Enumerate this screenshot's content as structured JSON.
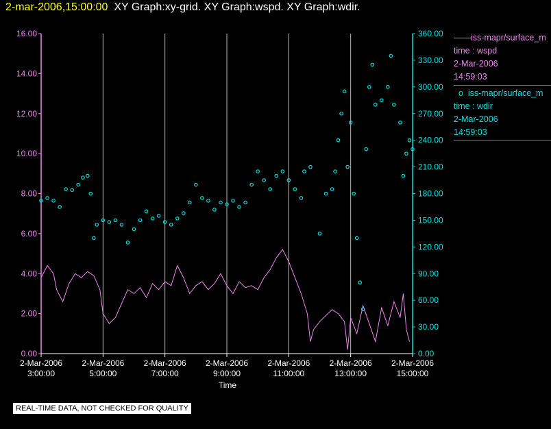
{
  "header": {
    "timestamp": "2-mar-2006,15:00:00",
    "titles": "XY Graph:xy-grid.  XY Graph:wspd.  XY Graph:wdir."
  },
  "legend": {
    "series1": {
      "name": "iss-mapr/surface_m",
      "time_label": "time : wspd",
      "date": "2-Mar-2006",
      "time": "14:59:03"
    },
    "series2": {
      "name": "iss-mapr/surface_m",
      "time_label": "time : wdir",
      "date": "2-Mar-2006",
      "time": "14:59:03"
    }
  },
  "notice": "REAL-TIME DATA, NOT CHECKED FOR QUALITY",
  "colors": {
    "wspd": "#ee88ee",
    "wdir": "#00e0e0",
    "grid": "#bbbbbb",
    "axis_text": "#ffffff"
  },
  "chart_data": {
    "type": "scatter",
    "xlabel": "Time",
    "x_ticks": [
      {
        "date": "2-Mar-2006",
        "time": "3:00:00"
      },
      {
        "date": "2-Mar-2006",
        "time": "5:00:00"
      },
      {
        "date": "2-Mar-2006",
        "time": "7:00:00"
      },
      {
        "date": "2-Mar-2006",
        "time": "9:00:00"
      },
      {
        "date": "2-Mar-2006",
        "time": "11:00:00"
      },
      {
        "date": "2-Mar-2006",
        "time": "13:00:00"
      },
      {
        "date": "2-Mar-2006",
        "time": "15:00:00"
      }
    ],
    "xlim_hours": [
      3,
      15
    ],
    "y_left": {
      "ticks": [
        "0.00",
        "2.00",
        "4.00",
        "6.00",
        "8.00",
        "10.00",
        "12.00",
        "14.00",
        "16.00"
      ],
      "ylim": [
        0,
        16
      ]
    },
    "y_right": {
      "ticks": [
        "0.00",
        "30.00",
        "60.00",
        "90.00",
        "120.00",
        "150.00",
        "180.00",
        "210.00",
        "240.00",
        "270.00",
        "300.00",
        "330.00",
        "360.00"
      ],
      "ylim": [
        0,
        360
      ]
    },
    "grid": "vertical",
    "series": [
      {
        "axis": "left",
        "style": "line",
        "points": [
          [
            3,
            3.8
          ],
          [
            3.2,
            4.4
          ],
          [
            3.4,
            4.0
          ],
          [
            3.5,
            3.2
          ],
          [
            3.7,
            2.6
          ],
          [
            3.9,
            3.5
          ],
          [
            4.1,
            4.0
          ],
          [
            4.3,
            3.8
          ],
          [
            4.5,
            4.1
          ],
          [
            4.7,
            3.9
          ],
          [
            4.9,
            3.2
          ],
          [
            5.0,
            2.0
          ],
          [
            5.2,
            1.5
          ],
          [
            5.4,
            1.8
          ],
          [
            5.6,
            2.5
          ],
          [
            5.8,
            3.2
          ],
          [
            6.0,
            3.0
          ],
          [
            6.2,
            3.3
          ],
          [
            6.4,
            2.8
          ],
          [
            6.6,
            3.5
          ],
          [
            6.8,
            3.2
          ],
          [
            7.0,
            3.6
          ],
          [
            7.2,
            3.4
          ],
          [
            7.4,
            4.4
          ],
          [
            7.6,
            3.8
          ],
          [
            7.8,
            3.0
          ],
          [
            8.0,
            3.4
          ],
          [
            8.2,
            3.6
          ],
          [
            8.4,
            3.2
          ],
          [
            8.6,
            3.5
          ],
          [
            8.8,
            4.0
          ],
          [
            9.0,
            3.4
          ],
          [
            9.2,
            3.0
          ],
          [
            9.4,
            3.6
          ],
          [
            9.6,
            3.3
          ],
          [
            9.8,
            3.4
          ],
          [
            10.0,
            3.2
          ],
          [
            10.2,
            3.8
          ],
          [
            10.4,
            4.2
          ],
          [
            10.6,
            4.8
          ],
          [
            10.8,
            5.2
          ],
          [
            11.0,
            4.6
          ],
          [
            11.2,
            3.8
          ],
          [
            11.4,
            3.0
          ],
          [
            11.6,
            2.0
          ],
          [
            11.7,
            0.6
          ],
          [
            11.8,
            1.2
          ],
          [
            12.0,
            1.6
          ],
          [
            12.2,
            1.9
          ],
          [
            12.4,
            2.2
          ],
          [
            12.6,
            2.0
          ],
          [
            12.8,
            1.6
          ],
          [
            12.9,
            0.2
          ],
          [
            13.0,
            1.8
          ],
          [
            13.2,
            1.0
          ],
          [
            13.4,
            2.4
          ],
          [
            13.6,
            1.5
          ],
          [
            13.8,
            0.6
          ],
          [
            14.0,
            2.3
          ],
          [
            14.2,
            1.4
          ],
          [
            14.4,
            2.6
          ],
          [
            14.6,
            1.8
          ],
          [
            14.7,
            3.0
          ],
          [
            14.8,
            1.2
          ],
          [
            14.9,
            0.6
          ]
        ]
      },
      {
        "axis": "right",
        "style": "markers",
        "points": [
          [
            3,
            172
          ],
          [
            3.2,
            175
          ],
          [
            3.4,
            172
          ],
          [
            3.6,
            165
          ],
          [
            3.8,
            185
          ],
          [
            4.0,
            184
          ],
          [
            4.2,
            190
          ],
          [
            4.35,
            198
          ],
          [
            4.5,
            200
          ],
          [
            4.6,
            180
          ],
          [
            4.7,
            130
          ],
          [
            4.8,
            145
          ],
          [
            5.0,
            150
          ],
          [
            5.2,
            148
          ],
          [
            5.4,
            150
          ],
          [
            5.6,
            145
          ],
          [
            5.8,
            125
          ],
          [
            6.0,
            140
          ],
          [
            6.2,
            150
          ],
          [
            6.4,
            160
          ],
          [
            6.6,
            152
          ],
          [
            6.8,
            155
          ],
          [
            7.0,
            148
          ],
          [
            7.2,
            145
          ],
          [
            7.4,
            152
          ],
          [
            7.6,
            158
          ],
          [
            7.8,
            170
          ],
          [
            8.0,
            190
          ],
          [
            8.2,
            175
          ],
          [
            8.4,
            172
          ],
          [
            8.6,
            162
          ],
          [
            8.8,
            170
          ],
          [
            9.0,
            168
          ],
          [
            9.2,
            172
          ],
          [
            9.4,
            165
          ],
          [
            9.6,
            170
          ],
          [
            9.8,
            190
          ],
          [
            10.0,
            205
          ],
          [
            10.2,
            195
          ],
          [
            10.4,
            185
          ],
          [
            10.6,
            200
          ],
          [
            10.8,
            205
          ],
          [
            11.0,
            195
          ],
          [
            11.2,
            185
          ],
          [
            11.4,
            175
          ],
          [
            11.5,
            205
          ],
          [
            11.7,
            210
          ],
          [
            12.0,
            135
          ],
          [
            12.2,
            180
          ],
          [
            12.4,
            185
          ],
          [
            12.5,
            205
          ],
          [
            12.6,
            240
          ],
          [
            12.7,
            270
          ],
          [
            12.8,
            295
          ],
          [
            12.9,
            210
          ],
          [
            13.0,
            260
          ],
          [
            13.1,
            180
          ],
          [
            13.2,
            130
          ],
          [
            13.3,
            80
          ],
          [
            13.4,
            50
          ],
          [
            13.5,
            230
          ],
          [
            13.6,
            300
          ],
          [
            13.7,
            325
          ],
          [
            13.8,
            280
          ],
          [
            14.0,
            285
          ],
          [
            14.2,
            300
          ],
          [
            14.3,
            335
          ],
          [
            14.4,
            280
          ],
          [
            14.6,
            260
          ],
          [
            14.7,
            200
          ],
          [
            14.8,
            225
          ],
          [
            14.9,
            240
          ],
          [
            15.0,
            230
          ]
        ]
      }
    ]
  }
}
